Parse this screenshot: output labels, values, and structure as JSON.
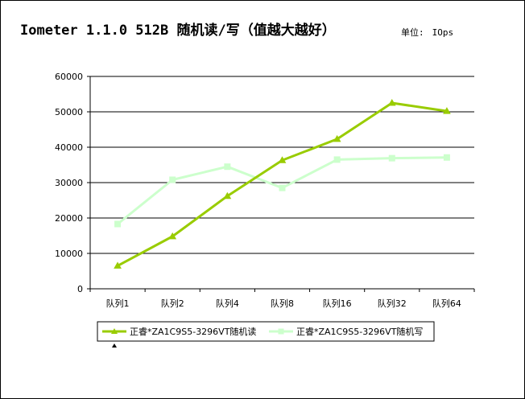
{
  "title": "Iometer 1.1.0 512B 随机读/写（值越大越好）",
  "unit_label": "单位:",
  "unit_value": "IOps",
  "colors": {
    "read": "#99cc00",
    "write": "#ccffcc"
  },
  "chart_data": {
    "type": "line",
    "title": "Iometer 1.1.0 512B 随机读/写（值越大越好）",
    "xlabel": "",
    "ylabel": "",
    "categories": [
      "队列1",
      "队列2",
      "队列4",
      "队列8",
      "队列16",
      "队列32",
      "队列64"
    ],
    "y_ticks": [
      "0",
      "10000",
      "20000",
      "30000",
      "40000",
      "50000",
      "60000"
    ],
    "ylim": [
      0,
      60000
    ],
    "grid": true,
    "legend_position": "bottom",
    "series": [
      {
        "name": "正睿*ZA1C9S5-3296VT随机读",
        "color": "#99cc00",
        "marker": "triangle",
        "values": [
          6500,
          14800,
          26200,
          36300,
          42300,
          52500,
          50200
        ]
      },
      {
        "name": "正睿*ZA1C9S5-3296VT随机写",
        "color": "#ccffcc",
        "marker": "square",
        "values": [
          18300,
          30800,
          34500,
          28500,
          36500,
          36900,
          37100
        ]
      }
    ]
  }
}
